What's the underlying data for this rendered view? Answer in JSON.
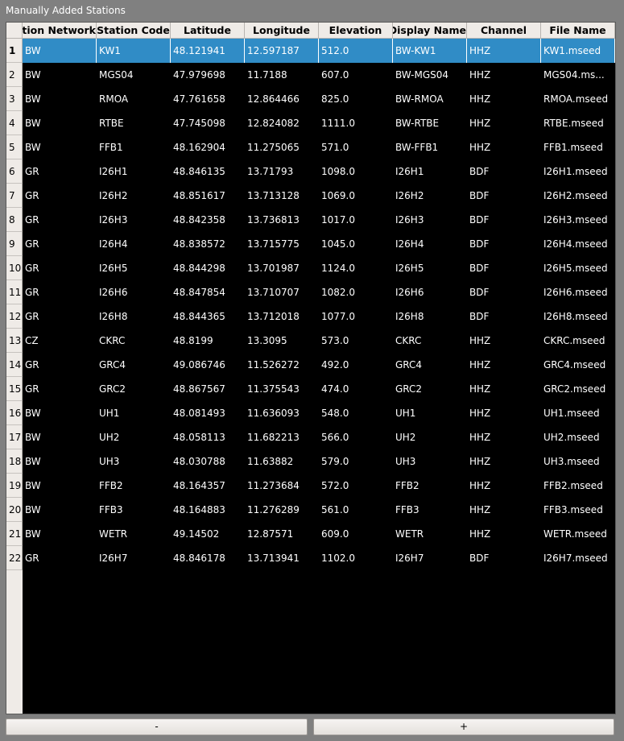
{
  "window": {
    "title": "Manually Added Stations"
  },
  "table": {
    "columns": [
      "Station Network",
      "Station Code",
      "Latitude",
      "Longitude",
      "Elevation",
      "Station Display Name",
      "Channel",
      "File Name"
    ],
    "selected_row": 1,
    "rows": [
      {
        "num": "1",
        "cells": [
          "BW",
          "KW1",
          "48.121941",
          "12.597187",
          "512.0",
          "BW-KW1",
          "HHZ",
          "KW1.mseed"
        ]
      },
      {
        "num": "2",
        "cells": [
          "BW",
          "MGS04",
          "47.979698",
          "11.7188",
          "607.0",
          "BW-MGS04",
          "HHZ",
          "MGS04.ms..."
        ]
      },
      {
        "num": "3",
        "cells": [
          "BW",
          "RMOA",
          "47.761658",
          "12.864466",
          "825.0",
          "BW-RMOA",
          "HHZ",
          "RMOA.mseed"
        ]
      },
      {
        "num": "4",
        "cells": [
          "BW",
          "RTBE",
          "47.745098",
          "12.824082",
          "1111.0",
          "BW-RTBE",
          "HHZ",
          "RTBE.mseed"
        ]
      },
      {
        "num": "5",
        "cells": [
          "BW",
          "FFB1",
          "48.162904",
          "11.275065",
          "571.0",
          "BW-FFB1",
          "HHZ",
          "FFB1.mseed"
        ]
      },
      {
        "num": "6",
        "cells": [
          "GR",
          "I26H1",
          "48.846135",
          "13.71793",
          "1098.0",
          "I26H1",
          "BDF",
          "I26H1.mseed"
        ]
      },
      {
        "num": "7",
        "cells": [
          "GR",
          "I26H2",
          "48.851617",
          "13.713128",
          "1069.0",
          "I26H2",
          "BDF",
          "I26H2.mseed"
        ]
      },
      {
        "num": "8",
        "cells": [
          "GR",
          "I26H3",
          "48.842358",
          "13.736813",
          "1017.0",
          "I26H3",
          "BDF",
          "I26H3.mseed"
        ]
      },
      {
        "num": "9",
        "cells": [
          "GR",
          "I26H4",
          "48.838572",
          "13.715775",
          "1045.0",
          "I26H4",
          "BDF",
          "I26H4.mseed"
        ]
      },
      {
        "num": "10",
        "cells": [
          "GR",
          "I26H5",
          "48.844298",
          "13.701987",
          "1124.0",
          "I26H5",
          "BDF",
          "I26H5.mseed"
        ]
      },
      {
        "num": "11",
        "cells": [
          "GR",
          "I26H6",
          "48.847854",
          "13.710707",
          "1082.0",
          "I26H6",
          "BDF",
          "I26H6.mseed"
        ]
      },
      {
        "num": "12",
        "cells": [
          "GR",
          "I26H8",
          "48.844365",
          "13.712018",
          "1077.0",
          "I26H8",
          "BDF",
          "I26H8.mseed"
        ]
      },
      {
        "num": "13",
        "cells": [
          "CZ",
          "CKRC",
          "48.8199",
          "13.3095",
          "573.0",
          "CKRC",
          "HHZ",
          "CKRC.mseed"
        ]
      },
      {
        "num": "14",
        "cells": [
          "GR",
          "GRC4",
          "49.086746",
          "11.526272",
          "492.0",
          "GRC4",
          "HHZ",
          "GRC4.mseed"
        ]
      },
      {
        "num": "15",
        "cells": [
          "GR",
          "GRC2",
          "48.867567",
          "11.375543",
          "474.0",
          "GRC2",
          "HHZ",
          "GRC2.mseed"
        ]
      },
      {
        "num": "16",
        "cells": [
          "BW",
          "UH1",
          "48.081493",
          "11.636093",
          "548.0",
          "UH1",
          "HHZ",
          "UH1.mseed"
        ]
      },
      {
        "num": "17",
        "cells": [
          "BW",
          "UH2",
          "48.058113",
          "11.682213",
          "566.0",
          "UH2",
          "HHZ",
          "UH2.mseed"
        ]
      },
      {
        "num": "18",
        "cells": [
          "BW",
          "UH3",
          "48.030788",
          "11.63882",
          "579.0",
          "UH3",
          "HHZ",
          "UH3.mseed"
        ]
      },
      {
        "num": "19",
        "cells": [
          "BW",
          "FFB2",
          "48.164357",
          "11.273684",
          "572.0",
          "FFB2",
          "HHZ",
          "FFB2.mseed"
        ]
      },
      {
        "num": "20",
        "cells": [
          "BW",
          "FFB3",
          "48.164883",
          "11.276289",
          "561.0",
          "FFB3",
          "HHZ",
          "FFB3.mseed"
        ]
      },
      {
        "num": "21",
        "cells": [
          "BW",
          "WETR",
          "49.14502",
          "12.87571",
          "609.0",
          "WETR",
          "HHZ",
          "WETR.mseed"
        ]
      },
      {
        "num": "22",
        "cells": [
          "GR",
          "I26H7",
          "48.846178",
          "13.713941",
          "1102.0",
          "I26H7",
          "BDF",
          "I26H7.mseed"
        ]
      }
    ]
  },
  "buttons": {
    "remove_label": "-",
    "add_label": "+"
  },
  "colors": {
    "selection": "#308cc6",
    "table_background": "#000000",
    "header_background": "#efebe7"
  }
}
